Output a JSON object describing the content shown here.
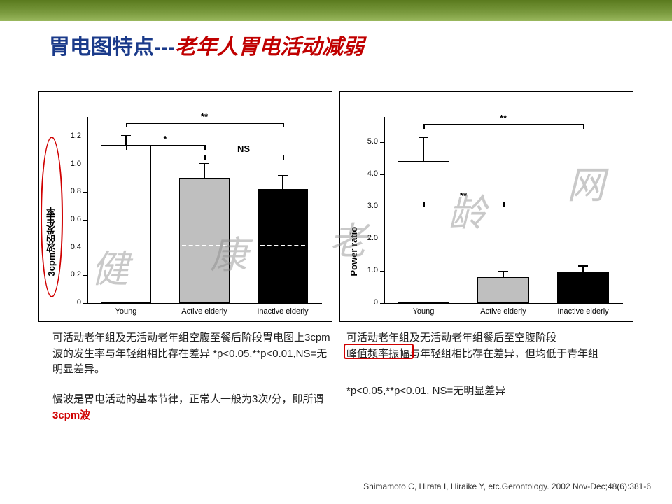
{
  "title": {
    "part1": "胃电图特点---",
    "part2": "老年人胃电活动减弱"
  },
  "watermark": [
    "健",
    "康",
    "老",
    "龄",
    "网"
  ],
  "chart_left": {
    "type": "bar",
    "ylabel": "3cpm波的发生率",
    "categories": [
      "Young",
      "Active elderly",
      "Inactive elderly"
    ],
    "values": [
      1.14,
      0.9,
      0.82
    ],
    "errors": [
      0.07,
      0.11,
      0.1
    ],
    "bar_colors": [
      "#ffffff",
      "#bfbfbf",
      "#000000"
    ],
    "ylim": [
      0,
      1.3
    ],
    "yticks": [
      0,
      0.2,
      0.4,
      0.6,
      0.8,
      1.0,
      1.2
    ],
    "ytick_labels": [
      "0",
      "0.2",
      "0.4",
      "0.6",
      "0.8",
      "1.0",
      "1.2"
    ],
    "bar_width": 0.65,
    "sig": [
      {
        "from": 0,
        "to": 2,
        "label": "**",
        "y": 1.3
      },
      {
        "from": 0,
        "to": 1,
        "label": "*",
        "y": 1.14
      },
      {
        "from": 1,
        "to": 2,
        "label": "NS",
        "y": 1.07
      }
    ],
    "dash_y": 0.42
  },
  "chart_right": {
    "type": "bar",
    "ylabel": "Power ratio",
    "categories": [
      "Young",
      "Active elderly",
      "Inactive elderly"
    ],
    "values": [
      4.4,
      0.8,
      0.95
    ],
    "errors": [
      0.75,
      0.2,
      0.22
    ],
    "bar_colors": [
      "#ffffff",
      "#bfbfbf",
      "#000000"
    ],
    "ylim": [
      0,
      5.6
    ],
    "yticks": [
      0,
      1.0,
      2.0,
      3.0,
      4.0,
      5.0
    ],
    "ytick_labels": [
      "0",
      "1.0",
      "2.0",
      "3.0",
      "4.0",
      "5.0"
    ],
    "bar_width": 0.65,
    "sig": [
      {
        "from": 0,
        "to": 2,
        "label": "**",
        "y": 5.55
      },
      {
        "from": 0,
        "to": 1,
        "label": "**",
        "y": 3.15
      }
    ]
  },
  "caption_left_1": "可活动老年组及无活动老年组空腹至餐后阶段胃电图上3cpm波的发生率与年轻组相比存在差异 *p<0.05,**p<0.01,NS=无明显差异。",
  "caption_left_2a": "慢波是胃电活动的基本节律，正常人一般为3次/分，即所谓",
  "caption_left_2b": "3cpm波",
  "caption_right_1a": "可活动老年组及无活动老年组餐后至空腹阶段",
  "caption_right_1b": "峰值频率振幅",
  "caption_right_1c": "与年轻组相比存在差异，但均低于青年组",
  "caption_right_2": " *p<0.05,**p<0.01,  NS=无明显差异",
  "citation": "Shimamoto C, Hirata I, Hiraike Y, etc.Gerontology. 2002 Nov-Dec;48(6):381-6"
}
